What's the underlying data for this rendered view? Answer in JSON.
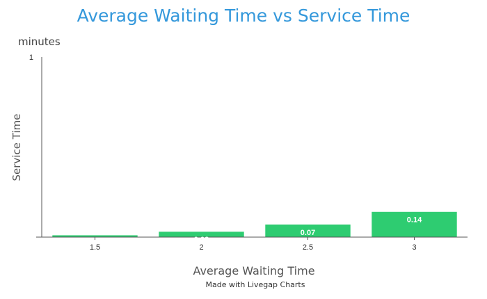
{
  "chart_data": {
    "type": "bar",
    "title": "Average Waiting Time vs Service Time",
    "xlabel": "Average Waiting Time",
    "ylabel": "Service Time",
    "y_unit": "minutes",
    "categories": [
      "1.5",
      "2",
      "2.5",
      "3"
    ],
    "values": [
      0.01,
      0.03,
      0.07,
      0.14
    ],
    "data_labels": [
      "",
      "0.03",
      "0.07",
      "0.14"
    ],
    "ylim": [
      0,
      1
    ],
    "y_ticks": [
      "1"
    ],
    "grid": false,
    "legend": "none",
    "bar_color": "#2ecc71"
  },
  "footer": {
    "credit": "Made with Livegap Charts"
  },
  "colors": {
    "title": "#3498db",
    "axis": "#555555"
  }
}
